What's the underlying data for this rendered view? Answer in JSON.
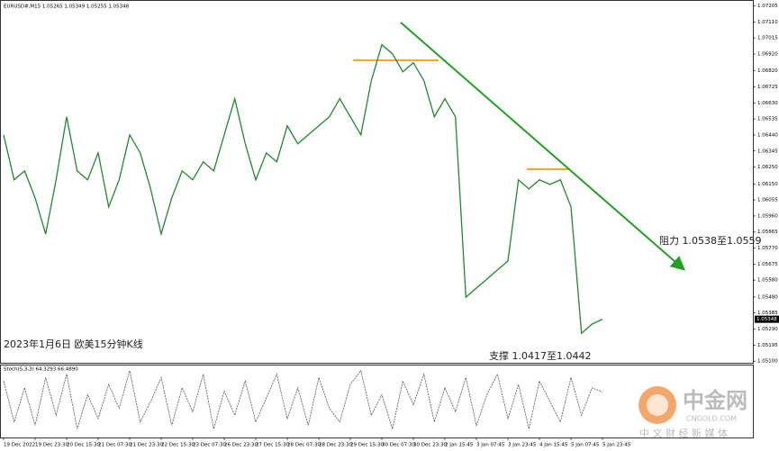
{
  "chart_data": [
    {
      "type": "line",
      "title": "EURUSD#,M15  1.05265 1.05349 1.05255 1.05348",
      "caption": "2023年1月6日 欧美15分钟K线",
      "resistance": "阻力 1.0538至1.0559",
      "support": "支撑 1.0417至1.0442",
      "color": "#1f8a2a",
      "last_price": 1.05348,
      "categories": [
        "19 Dec 2022",
        null,
        null,
        "19 Dec 23:30",
        null,
        null,
        "20 Dec 15:30",
        null,
        null,
        "21 Dec 07:30",
        null,
        null,
        "21 Dec 23:30",
        null,
        null,
        "22 Dec 15:30",
        null,
        null,
        "23 Dec 07:30",
        null,
        null,
        "26 Dec 23:30",
        null,
        null,
        "27 Dec 15:30",
        null,
        null,
        "28 Dec 07:30",
        null,
        null,
        "28 Dec 23:30",
        null,
        null,
        "29 Dec 15:30",
        null,
        null,
        "30 Dec 07:30",
        null,
        null,
        "30 Dec 23:30",
        null,
        null,
        "2 Jan 15:45",
        null,
        null,
        "3 Jan 07:45",
        null,
        null,
        "3 Jan 23:45",
        null,
        null,
        "4 Jan 15:45",
        null,
        null,
        "5 Jan 07:45",
        null,
        null,
        "5 Jan 23:45"
      ],
      "values": [
        1.06441,
        1.06174,
        1.06227,
        1.06067,
        1.05853,
        1.06174,
        1.06548,
        1.06227,
        1.06174,
        1.06334,
        1.06014,
        1.06174,
        1.06441,
        1.06334,
        1.0612,
        1.05853,
        1.06067,
        1.06227,
        1.06174,
        1.06281,
        1.06227,
        1.06441,
        1.06655,
        1.06388,
        1.06174,
        1.06334,
        1.06281,
        1.06494,
        1.06388,
        1.06441,
        1.06494,
        1.06548,
        1.06655,
        1.06548,
        1.06441,
        1.06762,
        1.06975,
        1.06922,
        1.06815,
        1.06868,
        1.06762,
        1.06548,
        1.06655,
        1.06548,
        1.05479,
        1.05533,
        1.05586,
        1.0564,
        1.05693,
        1.06174,
        1.0612,
        1.06174,
        1.06147,
        1.06174,
        1.06014,
        1.05265,
        1.05319,
        1.05348
      ],
      "ylim": [
        1.0509,
        1.0724
      ],
      "yticks": [
        {
          "value": 1.07205,
          "label": "1.07205"
        },
        {
          "value": 1.0711,
          "label": "1.07110"
        },
        {
          "value": 1.07015,
          "label": "1.07015"
        },
        {
          "value": 1.0692,
          "label": "1.06920"
        },
        {
          "value": 1.0682,
          "label": "1.06820"
        },
        {
          "value": 1.06725,
          "label": "1.06725"
        },
        {
          "value": 1.0663,
          "label": "1.06630"
        },
        {
          "value": 1.06535,
          "label": "1.06535"
        },
        {
          "value": 1.0644,
          "label": "1.06440"
        },
        {
          "value": 1.06345,
          "label": "1.06345"
        },
        {
          "value": 1.0625,
          "label": "1.06250"
        },
        {
          "value": 1.0615,
          "label": "1.06150"
        },
        {
          "value": 1.06055,
          "label": "1.06055"
        },
        {
          "value": 1.0596,
          "label": "1.05960"
        },
        {
          "value": 1.05865,
          "label": "1.05865"
        },
        {
          "value": 1.0577,
          "label": "1.05770"
        },
        {
          "value": 1.05675,
          "label": "1.05675"
        },
        {
          "value": 1.0558,
          "label": "1.05580"
        },
        {
          "value": 1.0548,
          "label": "1.05480"
        },
        {
          "value": 1.05385,
          "label": "1.05385"
        },
        {
          "value": 1.0529,
          "label": "1.05290"
        },
        {
          "value": 1.05195,
          "label": "1.05195"
        },
        {
          "value": 1.051,
          "label": "1.05100"
        }
      ]
    },
    {
      "type": "line",
      "title": "Stoch(5,3,3) 64.3293 66.4890",
      "color": "#555555",
      "values": [
        80,
        20,
        70,
        15,
        85,
        30,
        90,
        10,
        60,
        25,
        75,
        40,
        95,
        20,
        50,
        85,
        15,
        70,
        35,
        90,
        10,
        65,
        30,
        80,
        20,
        55,
        90,
        25,
        70,
        15,
        85,
        40,
        20,
        75,
        95,
        30,
        60,
        10,
        80,
        45,
        90,
        20,
        70,
        35,
        85,
        15,
        60,
        90,
        25,
        75,
        10,
        80,
        50,
        20,
        85,
        30,
        70,
        64
      ],
      "ylim": [
        0,
        100
      ]
    }
  ],
  "watermark": {
    "name": "中金网",
    "domain": "CNGOLD.COM",
    "slogan": "中 文 财 经 新 媒 体"
  }
}
